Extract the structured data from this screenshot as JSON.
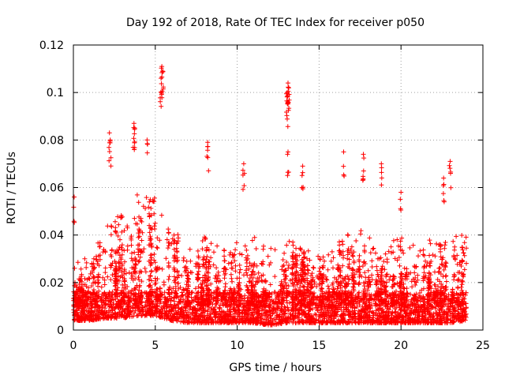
{
  "chart_data": {
    "type": "scatter",
    "title": "Day 192 of 2018, Rate Of TEC Index for receiver p050",
    "xlabel": "GPS time / hours",
    "ylabel": "ROTI / TECUs",
    "xlim": [
      0,
      25
    ],
    "ylim": [
      0,
      0.12
    ],
    "x_ticks": [
      0,
      5,
      10,
      15,
      20,
      25
    ],
    "x_tick_labels": [
      "0",
      "5",
      "10",
      "15",
      "20",
      "25"
    ],
    "y_ticks": [
      0,
      0.02,
      0.04,
      0.06,
      0.08,
      0.1,
      0.12
    ],
    "y_tick_labels": [
      "0",
      "0.02",
      "0.04",
      "0.06",
      "0.08",
      "0.1",
      "0.12"
    ],
    "grid": true,
    "marker": "+",
    "marker_color": "#ff0000",
    "data_range_hours": [
      0,
      24
    ],
    "baseline_roti": 0.01,
    "notable_points": [
      {
        "x": 5.4,
        "y": 0.111
      },
      {
        "x": 5.45,
        "y": 0.109
      },
      {
        "x": 5.35,
        "y": 0.106
      },
      {
        "x": 13.1,
        "y": 0.104
      },
      {
        "x": 13.15,
        "y": 0.102
      },
      {
        "x": 13.05,
        "y": 0.1
      },
      {
        "x": 13.1,
        "y": 0.096
      },
      {
        "x": 3.7,
        "y": 0.087
      },
      {
        "x": 3.75,
        "y": 0.085
      },
      {
        "x": 2.2,
        "y": 0.083
      },
      {
        "x": 2.25,
        "y": 0.08
      },
      {
        "x": 4.5,
        "y": 0.08
      },
      {
        "x": 8.2,
        "y": 0.079
      },
      {
        "x": 13.1,
        "y": 0.075
      },
      {
        "x": 16.5,
        "y": 0.075
      },
      {
        "x": 17.7,
        "y": 0.074
      },
      {
        "x": 10.4,
        "y": 0.07
      },
      {
        "x": 18.8,
        "y": 0.07
      },
      {
        "x": 23.0,
        "y": 0.071
      },
      {
        "x": 14.0,
        "y": 0.069
      },
      {
        "x": 0.05,
        "y": 0.056
      },
      {
        "x": 20.0,
        "y": 0.058
      },
      {
        "x": 22.6,
        "y": 0.064
      }
    ],
    "density_profile": [
      {
        "x": 0.0,
        "low": 0.004,
        "high": 0.028
      },
      {
        "x": 1.0,
        "low": 0.004,
        "high": 0.032
      },
      {
        "x": 2.0,
        "low": 0.005,
        "high": 0.045
      },
      {
        "x": 3.0,
        "low": 0.005,
        "high": 0.05
      },
      {
        "x": 4.0,
        "low": 0.006,
        "high": 0.058
      },
      {
        "x": 5.0,
        "low": 0.006,
        "high": 0.06
      },
      {
        "x": 6.0,
        "low": 0.004,
        "high": 0.045
      },
      {
        "x": 7.0,
        "low": 0.003,
        "high": 0.035
      },
      {
        "x": 8.0,
        "low": 0.003,
        "high": 0.04
      },
      {
        "x": 9.0,
        "low": 0.003,
        "high": 0.035
      },
      {
        "x": 10.0,
        "low": 0.003,
        "high": 0.038
      },
      {
        "x": 11.0,
        "low": 0.003,
        "high": 0.04
      },
      {
        "x": 12.0,
        "low": 0.002,
        "high": 0.035
      },
      {
        "x": 13.0,
        "low": 0.003,
        "high": 0.04
      },
      {
        "x": 14.0,
        "low": 0.003,
        "high": 0.04
      },
      {
        "x": 15.0,
        "low": 0.003,
        "high": 0.035
      },
      {
        "x": 16.0,
        "low": 0.003,
        "high": 0.038
      },
      {
        "x": 17.0,
        "low": 0.003,
        "high": 0.045
      },
      {
        "x": 18.0,
        "low": 0.003,
        "high": 0.04
      },
      {
        "x": 19.0,
        "low": 0.003,
        "high": 0.035
      },
      {
        "x": 20.0,
        "low": 0.003,
        "high": 0.04
      },
      {
        "x": 21.0,
        "low": 0.003,
        "high": 0.035
      },
      {
        "x": 22.0,
        "low": 0.003,
        "high": 0.04
      },
      {
        "x": 23.0,
        "low": 0.003,
        "high": 0.042
      },
      {
        "x": 24.0,
        "low": 0.004,
        "high": 0.04
      }
    ]
  }
}
